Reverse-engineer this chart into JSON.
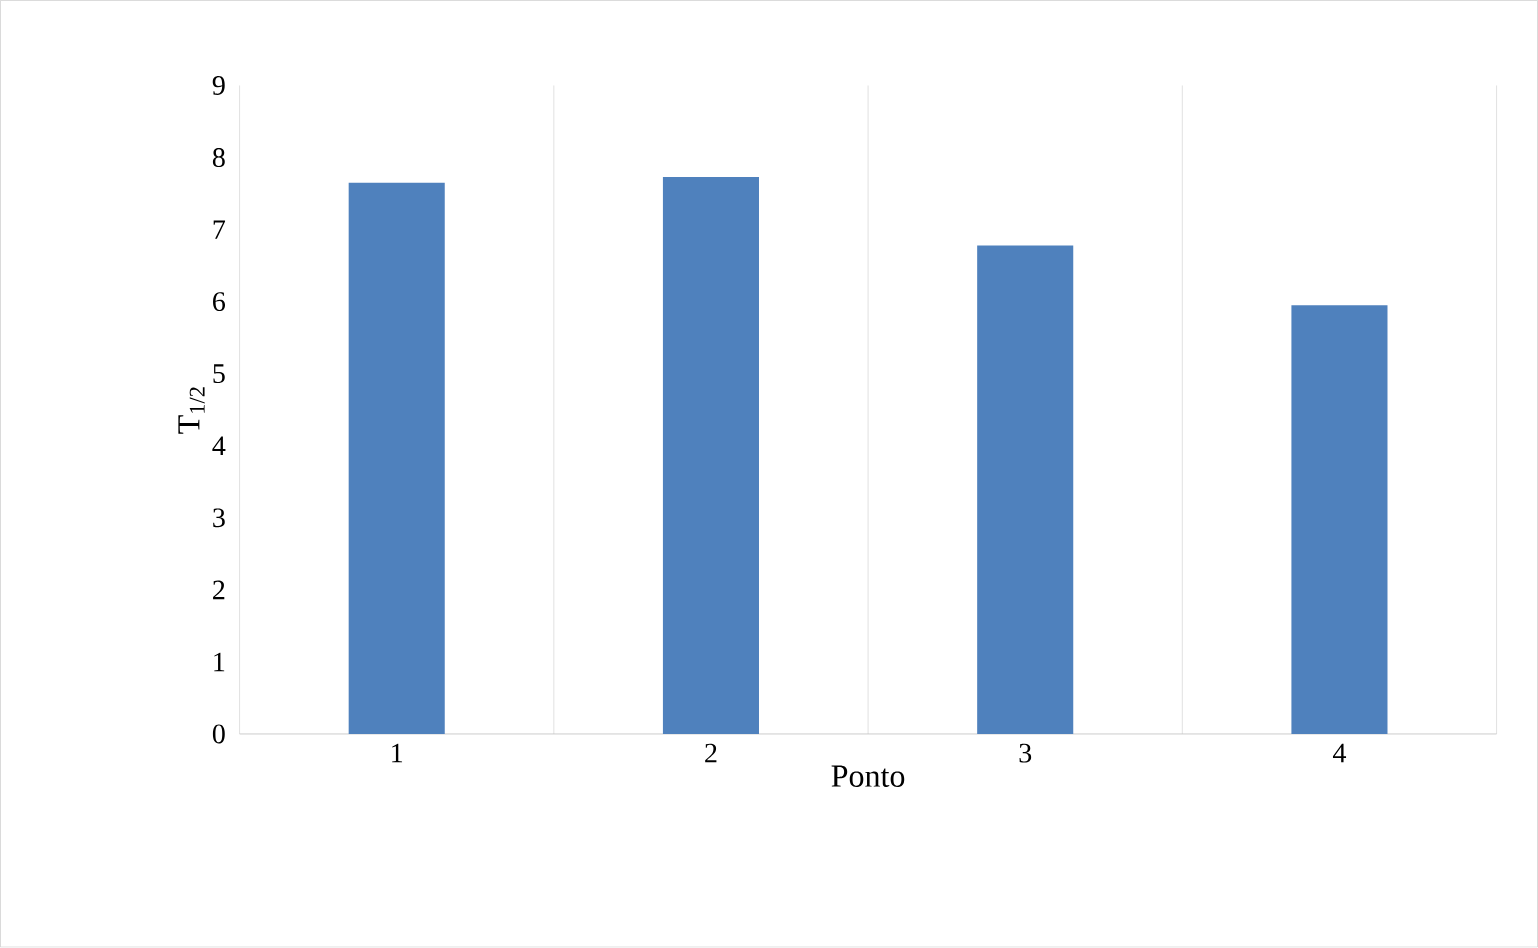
{
  "chart_data": {
    "type": "bar",
    "xlabel": "Ponto",
    "ylabel": "T$_{1/2}$",
    "categories": [
      "1",
      "2",
      "3",
      "4"
    ],
    "values": [
      7.65,
      7.73,
      6.78,
      5.95
    ],
    "color": "#4f81bd",
    "ylim": [
      0,
      9
    ],
    "yticks": [
      0,
      1,
      2,
      3,
      4,
      5,
      6,
      7,
      8,
      9
    ],
    "grid": "x"
  }
}
